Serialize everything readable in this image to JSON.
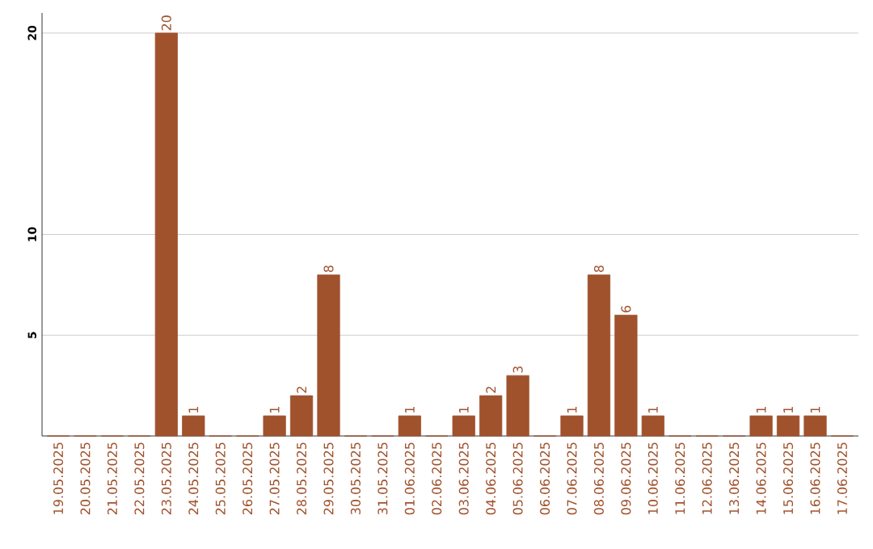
{
  "chart_data": {
    "type": "bar",
    "categories": [
      "19.05.2025",
      "20.05.2025",
      "21.05.2025",
      "22.05.2025",
      "23.05.2025",
      "24.05.2025",
      "25.05.2025",
      "26.05.2025",
      "27.05.2025",
      "28.05.2025",
      "29.05.2025",
      "30.05.2025",
      "31.05.2025",
      "01.06.2025",
      "02.06.2025",
      "03.06.2025",
      "04.06.2025",
      "05.06.2025",
      "06.06.2025",
      "07.06.2025",
      "08.06.2025",
      "09.06.2025",
      "10.06.2025",
      "11.06.2025",
      "12.06.2025",
      "13.06.2025",
      "14.06.2025",
      "15.06.2025",
      "16.06.2025",
      "17.06.2025"
    ],
    "values": [
      0,
      0,
      0,
      0,
      20,
      1,
      0,
      0,
      1,
      2,
      8,
      0,
      0,
      1,
      0,
      1,
      2,
      3,
      0,
      1,
      8,
      6,
      1,
      0,
      0,
      0,
      1,
      1,
      1,
      0
    ],
    "value_labels": [
      null,
      null,
      null,
      null,
      "20",
      "1",
      null,
      null,
      "1",
      "2",
      "8",
      null,
      null,
      "1",
      null,
      "1",
      "2",
      "3",
      null,
      "1",
      "8",
      "6",
      "1",
      null,
      null,
      null,
      "1",
      "1",
      "1",
      null
    ],
    "color": "#a0522d",
    "ylim": [
      0,
      21
    ],
    "yticks": [
      5,
      10,
      20
    ],
    "grid": "y"
  }
}
